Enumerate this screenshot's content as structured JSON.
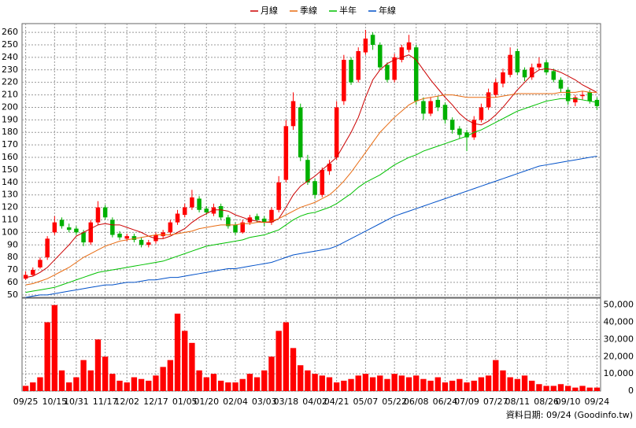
{
  "chart_data": [
    {
      "type": "candlestick",
      "categories": [
        "09/25",
        null,
        null,
        null,
        "10/15",
        null,
        null,
        "10/31",
        null,
        null,
        null,
        "11/17",
        null,
        null,
        "12/02",
        null,
        null,
        null,
        "12/17",
        null,
        null,
        null,
        "01/05",
        null,
        null,
        "01/20",
        null,
        null,
        null,
        "02/04",
        null,
        null,
        null,
        "03/03",
        null,
        null,
        "03/18",
        null,
        null,
        null,
        "04/02",
        null,
        null,
        "04/21",
        null,
        null,
        null,
        "05/07",
        null,
        null,
        null,
        "05/22",
        null,
        null,
        "06/08",
        null,
        null,
        null,
        "06/24",
        null,
        null,
        "07/09",
        null,
        null,
        null,
        "07/27",
        null,
        null,
        "08/11",
        null,
        null,
        null,
        "08/26",
        null,
        null,
        "09/10",
        null,
        null,
        null,
        "09/24"
      ],
      "open": [
        63,
        66,
        72,
        80,
        100,
        110,
        104,
        103,
        100,
        92,
        108,
        120,
        110,
        99,
        95,
        97,
        94,
        90,
        93,
        97,
        100,
        108,
        114,
        120,
        127,
        119,
        115,
        121,
        112,
        106,
        100,
        108,
        113,
        111,
        108,
        118,
        142,
        185,
        200,
        158,
        141,
        130,
        149,
        160,
        205,
        238,
        222,
        244,
        258,
        250,
        234,
        222,
        238,
        246,
        248,
        205,
        195,
        206,
        202,
        190,
        183,
        180,
        176,
        190,
        200,
        210,
        219,
        226,
        245,
        230,
        224,
        232,
        236,
        229,
        222,
        214,
        204,
        209,
        212,
        206
      ],
      "high": [
        69,
        72,
        80,
        97,
        113,
        112,
        107,
        105,
        102,
        110,
        125,
        122,
        112,
        101,
        99,
        99,
        96,
        94,
        100,
        102,
        110,
        118,
        123,
        134,
        129,
        121,
        123,
        123,
        114,
        108,
        110,
        114,
        115,
        113,
        120,
        145,
        190,
        212,
        203,
        162,
        143,
        152,
        158,
        205,
        242,
        240,
        248,
        262,
        260,
        252,
        236,
        243,
        250,
        258,
        250,
        208,
        208,
        209,
        204,
        192,
        185,
        182,
        193,
        203,
        215,
        223,
        231,
        248,
        247,
        232,
        235,
        240,
        238,
        231,
        224,
        216,
        210,
        213,
        214,
        208
      ],
      "low": [
        62,
        65,
        71,
        78,
        98,
        103,
        100,
        98,
        89,
        90,
        106,
        110,
        96,
        94,
        93,
        92,
        88,
        88,
        91,
        95,
        98,
        106,
        112,
        118,
        116,
        114,
        113,
        110,
        103,
        98,
        99,
        106,
        108,
        105,
        106,
        116,
        140,
        182,
        157,
        138,
        127,
        128,
        146,
        158,
        202,
        218,
        220,
        242,
        246,
        230,
        220,
        220,
        236,
        244,
        202,
        190,
        193,
        197,
        187,
        179,
        175,
        165,
        174,
        188,
        198,
        208,
        216,
        224,
        226,
        221,
        222,
        230,
        226,
        220,
        212,
        202,
        201,
        206,
        203,
        198
      ],
      "close": [
        66,
        70,
        78,
        95,
        108,
        105,
        102,
        100,
        92,
        108,
        120,
        112,
        98,
        96,
        97,
        94,
        90,
        92,
        98,
        100,
        108,
        115,
        120,
        128,
        118,
        116,
        120,
        112,
        105,
        100,
        108,
        112,
        110,
        108,
        118,
        140,
        185,
        205,
        160,
        140,
        130,
        150,
        155,
        200,
        238,
        220,
        245,
        255,
        250,
        232,
        222,
        240,
        248,
        252,
        205,
        195,
        205,
        200,
        190,
        182,
        178,
        176,
        190,
        200,
        212,
        220,
        228,
        242,
        228,
        224,
        232,
        235,
        228,
        222,
        215,
        205,
        208,
        210,
        205,
        201
      ],
      "up_color": "#ff0000",
      "down_color": "#00b000",
      "ylim": [
        48,
        267
      ],
      "yticks": [
        50,
        60,
        70,
        80,
        90,
        100,
        110,
        120,
        130,
        140,
        150,
        160,
        170,
        180,
        190,
        200,
        210,
        220,
        230,
        240,
        250,
        260
      ],
      "grid": true,
      "series": [
        {
          "name": "月線",
          "color": "#cc0000",
          "values": [
            64,
            65,
            68,
            72,
            78,
            84,
            90,
            97,
            100,
            103,
            106,
            107,
            106,
            106,
            104,
            102,
            100,
            97,
            95,
            95,
            97,
            100,
            103,
            108,
            112,
            115,
            118,
            118,
            117,
            114,
            112,
            110,
            109,
            108,
            108,
            111,
            120,
            130,
            137,
            141,
            145,
            150,
            155,
            160,
            170,
            180,
            192,
            208,
            222,
            230,
            235,
            238,
            240,
            242,
            238,
            230,
            222,
            215,
            208,
            202,
            195,
            190,
            187,
            186,
            189,
            194,
            200,
            207,
            214,
            220,
            226,
            230,
            231,
            230,
            228,
            225,
            222,
            218,
            215,
            212
          ]
        },
        {
          "name": "季線",
          "color": "#e86a10",
          "values": [
            58,
            59,
            61,
            63,
            66,
            69,
            72,
            76,
            80,
            83,
            86,
            89,
            91,
            93,
            94,
            95,
            96,
            97,
            98,
            98,
            98,
            99,
            100,
            101,
            103,
            104,
            105,
            106,
            106,
            106,
            107,
            107,
            108,
            108,
            109,
            111,
            114,
            117,
            120,
            122,
            124,
            127,
            130,
            135,
            141,
            148,
            156,
            164,
            172,
            180,
            186,
            192,
            197,
            202,
            205,
            207,
            208,
            209,
            210,
            210,
            209,
            208,
            208,
            208,
            208,
            208,
            209,
            210,
            211,
            211,
            211,
            211,
            211,
            211,
            212,
            212,
            212,
            213,
            212,
            212
          ]
        },
        {
          "name": "半年",
          "color": "#00c000",
          "values": [
            52,
            53,
            54,
            55,
            56,
            58,
            60,
            62,
            64,
            66,
            68,
            69,
            70,
            71,
            72,
            73,
            74,
            75,
            76,
            77,
            79,
            81,
            83,
            85,
            87,
            89,
            90,
            91,
            92,
            93,
            94,
            96,
            97,
            98,
            100,
            102,
            106,
            110,
            113,
            115,
            116,
            118,
            120,
            123,
            127,
            131,
            136,
            140,
            143,
            146,
            150,
            154,
            157,
            160,
            162,
            165,
            167,
            169,
            171,
            173,
            175,
            177,
            180,
            182,
            185,
            188,
            191,
            194,
            197,
            199,
            201,
            203,
            205,
            206,
            207,
            207,
            207,
            206,
            205,
            204
          ]
        },
        {
          "name": "年線",
          "color": "#0050c8",
          "values": [
            48,
            49,
            50,
            50,
            51,
            52,
            53,
            54,
            55,
            56,
            57,
            58,
            58,
            59,
            60,
            60,
            61,
            62,
            62,
            63,
            64,
            64,
            65,
            66,
            67,
            68,
            69,
            70,
            71,
            71,
            72,
            73,
            74,
            75,
            76,
            78,
            80,
            82,
            83,
            84,
            85,
            86,
            87,
            89,
            92,
            95,
            98,
            101,
            104,
            107,
            110,
            113,
            115,
            117,
            119,
            121,
            123,
            125,
            127,
            129,
            131,
            133,
            135,
            137,
            139,
            141,
            143,
            145,
            147,
            149,
            151,
            153,
            154,
            155,
            156,
            157,
            158,
            159,
            160,
            161
          ]
        }
      ],
      "footer": "資料日期: 09/24 (Goodinfo.tw)"
    },
    {
      "type": "bar",
      "color": "#ff0000",
      "values": [
        3000,
        5000,
        8000,
        40000,
        50000,
        12000,
        5000,
        8000,
        18000,
        12000,
        30000,
        20000,
        10000,
        6000,
        5000,
        8000,
        7000,
        6000,
        9000,
        14000,
        18000,
        45000,
        35000,
        28000,
        12000,
        8000,
        10000,
        6000,
        5000,
        5000,
        7000,
        10000,
        8000,
        12000,
        20000,
        35000,
        40000,
        25000,
        15000,
        12000,
        10000,
        9000,
        8000,
        5000,
        6000,
        7000,
        9000,
        10000,
        8000,
        9000,
        7000,
        10000,
        9000,
        8000,
        9000,
        7000,
        6000,
        8000,
        5000,
        6000,
        7000,
        5000,
        6000,
        8000,
        9000,
        18000,
        12000,
        8000,
        7000,
        9000,
        6000,
        4000,
        3000,
        3000,
        4000,
        3000,
        2000,
        3000,
        2000,
        2000
      ],
      "ylim": [
        0,
        54000
      ],
      "yticks": [
        0,
        {
          "value": 10000,
          "label": "10,000"
        },
        {
          "value": 20000,
          "label": "20,000"
        },
        {
          "value": 30000,
          "label": "30,000"
        },
        {
          "value": 40000,
          "label": "40,000"
        },
        {
          "value": 50000,
          "label": "50,000"
        }
      ],
      "grid": true
    }
  ]
}
